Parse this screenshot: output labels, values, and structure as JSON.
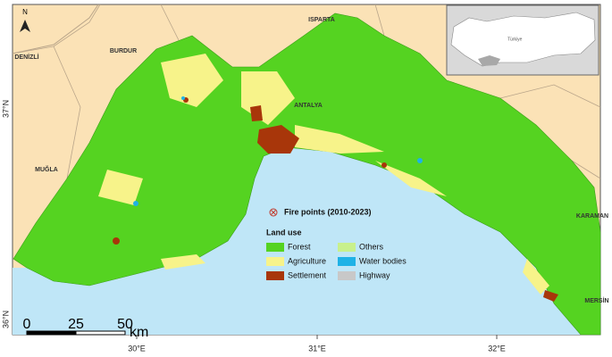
{
  "map": {
    "north_arrow": "N",
    "place_labels": [
      "DENİZLİ",
      "BURDUR",
      "ISPARTA",
      "ANTALYA",
      "MUĞLA",
      "KARAMAN",
      "MERSİN"
    ],
    "lat_labels": [
      "37°N",
      "36°N"
    ],
    "lon_labels": [
      "30°E",
      "31°E",
      "32°E"
    ],
    "legend": {
      "fire_points": "Fire points (2010-2023)",
      "title": "Land use",
      "items": [
        {
          "name": "Forest",
          "color": "#55d321"
        },
        {
          "name": "Agriculture",
          "color": "#f7f38a"
        },
        {
          "name": "Settlement",
          "color": "#a8360a"
        },
        {
          "name": "Others",
          "color": "#c8f08c"
        },
        {
          "name": "Water bodies",
          "color": "#1fb2e6"
        },
        {
          "name": "Highway",
          "color": "#c8c8c8"
        }
      ]
    },
    "scale_bar": {
      "labels": [
        "0",
        "25",
        "50"
      ],
      "unit": "km"
    },
    "inset": {
      "label": "Türkiye"
    }
  }
}
